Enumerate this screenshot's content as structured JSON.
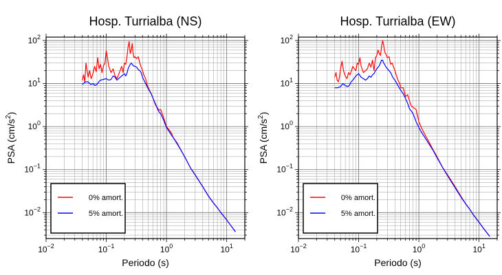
{
  "chart_data": [
    {
      "type": "line",
      "title": "Hosp. Turrialba (NS)",
      "xlabel": "Periodo (s)",
      "ylabel_main": "PSA (cm/s",
      "ylabel_sup": "2",
      "ylabel_close": ")",
      "xscale": "log",
      "yscale": "log",
      "xlim": [
        0.01,
        20
      ],
      "ylim": [
        0.0025,
        120
      ],
      "xticks": [
        {
          "base": "10",
          "exp": "−2",
          "value": 0.01
        },
        {
          "base": "10",
          "exp": "−1",
          "value": 0.1
        },
        {
          "base": "10",
          "exp": "0",
          "value": 1
        },
        {
          "base": "10",
          "exp": "1",
          "value": 10
        }
      ],
      "yticks": [
        {
          "base": "10",
          "exp": "−2",
          "value": 0.01
        },
        {
          "base": "10",
          "exp": "−1",
          "value": 0.1
        },
        {
          "base": "10",
          "exp": "0",
          "value": 1
        },
        {
          "base": "10",
          "exp": "1",
          "value": 10
        },
        {
          "base": "10",
          "exp": "2",
          "value": 100
        }
      ],
      "grid": true,
      "legend_position": "bottom-left",
      "series": [
        {
          "name": "0% amort.",
          "color": "#ff0000",
          "x": [
            0.04,
            0.042,
            0.044,
            0.046,
            0.048,
            0.05,
            0.053,
            0.056,
            0.06,
            0.064,
            0.068,
            0.072,
            0.076,
            0.08,
            0.085,
            0.09,
            0.095,
            0.1,
            0.105,
            0.11,
            0.12,
            0.13,
            0.14,
            0.15,
            0.16,
            0.17,
            0.18,
            0.19,
            0.2,
            0.21,
            0.22,
            0.23,
            0.24,
            0.25,
            0.26,
            0.27,
            0.28,
            0.29,
            0.3,
            0.32,
            0.34,
            0.36,
            0.38,
            0.4,
            0.42,
            0.45,
            0.48,
            0.5,
            0.55,
            0.6,
            0.65,
            0.7,
            0.75,
            0.8,
            0.9,
            1.0,
            1.1,
            1.2,
            1.3,
            1.5,
            1.7,
            2.0,
            2.5,
            3,
            4,
            5,
            6,
            7,
            8,
            10,
            12,
            14
          ],
          "y": [
            12,
            16,
            11,
            30,
            20,
            14,
            20,
            13,
            17,
            25,
            19,
            40,
            22,
            28,
            18,
            26,
            30,
            58,
            38,
            25,
            18,
            22,
            15,
            13,
            16,
            20,
            25,
            18,
            30,
            28,
            40,
            70,
            95,
            50,
            60,
            85,
            48,
            40,
            42,
            38,
            42,
            30,
            24,
            20,
            16,
            13,
            9,
            8,
            6,
            4.5,
            3.3,
            2.8,
            2.4,
            2.5,
            1.6,
            1.0,
            0.85,
            0.72,
            0.55,
            0.42,
            0.3,
            0.2,
            0.11,
            0.075,
            0.04,
            0.024,
            0.017,
            0.013,
            0.01,
            0.0068,
            0.0048,
            0.0036
          ]
        },
        {
          "name": "5% amort.",
          "color": "#0000ff",
          "x": [
            0.04,
            0.045,
            0.05,
            0.055,
            0.06,
            0.065,
            0.07,
            0.075,
            0.08,
            0.09,
            0.1,
            0.11,
            0.12,
            0.13,
            0.14,
            0.15,
            0.16,
            0.17,
            0.18,
            0.19,
            0.2,
            0.21,
            0.22,
            0.23,
            0.24,
            0.25,
            0.26,
            0.27,
            0.28,
            0.3,
            0.32,
            0.34,
            0.36,
            0.38,
            0.4,
            0.45,
            0.5,
            0.55,
            0.6,
            0.65,
            0.7,
            0.75,
            0.8,
            0.9,
            1.0,
            1.1,
            1.2,
            1.3,
            1.5,
            1.7,
            2.0,
            2.5,
            3,
            4,
            5,
            6,
            7,
            8,
            10,
            12,
            14
          ],
          "y": [
            9.5,
            11,
            11,
            9.5,
            10,
            9,
            9.5,
            11,
            12,
            12.5,
            13,
            12,
            12.5,
            15,
            14,
            12,
            13,
            14,
            15,
            16,
            17,
            15,
            17,
            22,
            25,
            28,
            30,
            28,
            26,
            25,
            24,
            21,
            20,
            18,
            14,
            10,
            7.5,
            6,
            4.5,
            3.5,
            2.7,
            2.2,
            2.0,
            1.4,
            0.95,
            0.78,
            0.65,
            0.55,
            0.4,
            0.3,
            0.2,
            0.11,
            0.075,
            0.04,
            0.024,
            0.017,
            0.013,
            0.01,
            0.0068,
            0.0048,
            0.0036
          ]
        }
      ]
    },
    {
      "type": "line",
      "title": "Hosp. Turrialba (EW)",
      "xlabel": "Periodo (s)",
      "ylabel_main": "PSA (cm/s",
      "ylabel_sup": "2",
      "ylabel_close": ")",
      "xscale": "log",
      "yscale": "log",
      "xlim": [
        0.01,
        20
      ],
      "ylim": [
        0.0025,
        120
      ],
      "xticks": [
        {
          "base": "10",
          "exp": "−2",
          "value": 0.01
        },
        {
          "base": "10",
          "exp": "−1",
          "value": 0.1
        },
        {
          "base": "10",
          "exp": "0",
          "value": 1
        },
        {
          "base": "10",
          "exp": "1",
          "value": 10
        }
      ],
      "yticks": [
        {
          "base": "10",
          "exp": "−2",
          "value": 0.01
        },
        {
          "base": "10",
          "exp": "−1",
          "value": 0.1
        },
        {
          "base": "10",
          "exp": "0",
          "value": 1
        },
        {
          "base": "10",
          "exp": "1",
          "value": 10
        },
        {
          "base": "10",
          "exp": "2",
          "value": 100
        }
      ],
      "grid": true,
      "legend_position": "bottom-left",
      "series": [
        {
          "name": "0% amort.",
          "color": "#ff0000",
          "x": [
            0.04,
            0.042,
            0.044,
            0.046,
            0.048,
            0.05,
            0.053,
            0.056,
            0.06,
            0.064,
            0.068,
            0.072,
            0.076,
            0.08,
            0.085,
            0.09,
            0.095,
            0.1,
            0.105,
            0.11,
            0.12,
            0.13,
            0.14,
            0.15,
            0.16,
            0.17,
            0.18,
            0.19,
            0.2,
            0.21,
            0.22,
            0.23,
            0.24,
            0.25,
            0.26,
            0.27,
            0.28,
            0.29,
            0.3,
            0.32,
            0.34,
            0.36,
            0.38,
            0.4,
            0.42,
            0.45,
            0.48,
            0.5,
            0.55,
            0.6,
            0.65,
            0.7,
            0.75,
            0.8,
            0.9,
            1.0,
            1.1,
            1.2,
            1.3,
            1.5,
            1.7,
            2.0,
            2.5,
            3,
            4,
            5,
            6,
            7,
            8,
            10,
            12,
            14,
            15
          ],
          "y": [
            14,
            18,
            12,
            11,
            14,
            22,
            33,
            20,
            15,
            13,
            18,
            16,
            20,
            25,
            22,
            20,
            30,
            28,
            40,
            25,
            18,
            20,
            22,
            30,
            24,
            35,
            20,
            40,
            45,
            60,
            50,
            45,
            70,
            100,
            80,
            55,
            50,
            45,
            40,
            42,
            28,
            30,
            24,
            20,
            16,
            12,
            10,
            8,
            8,
            5,
            5.5,
            4,
            3,
            2.8,
            2.5,
            1.3,
            0.95,
            0.75,
            0.6,
            0.42,
            0.3,
            0.2,
            0.11,
            0.075,
            0.04,
            0.024,
            0.016,
            0.012,
            0.009,
            0.006,
            0.0042,
            0.0032,
            0.0028
          ]
        },
        {
          "name": "5% amort.",
          "color": "#0000ff",
          "x": [
            0.04,
            0.045,
            0.05,
            0.055,
            0.06,
            0.065,
            0.07,
            0.075,
            0.08,
            0.09,
            0.1,
            0.11,
            0.12,
            0.13,
            0.14,
            0.15,
            0.16,
            0.17,
            0.18,
            0.19,
            0.2,
            0.21,
            0.22,
            0.23,
            0.24,
            0.25,
            0.26,
            0.27,
            0.28,
            0.3,
            0.32,
            0.34,
            0.36,
            0.38,
            0.4,
            0.45,
            0.5,
            0.55,
            0.6,
            0.65,
            0.7,
            0.75,
            0.8,
            0.9,
            1.0,
            1.1,
            1.2,
            1.3,
            1.5,
            1.7,
            2.0,
            2.5,
            3,
            4,
            5,
            6,
            7,
            8,
            10,
            12,
            14,
            15
          ],
          "y": [
            8,
            8,
            8.5,
            10,
            9,
            8.5,
            9,
            11,
            12,
            15,
            17,
            14,
            13,
            12,
            13,
            15,
            14,
            16,
            17,
            20,
            22,
            24,
            26,
            30,
            35,
            35,
            30,
            28,
            25,
            22,
            20,
            18,
            15,
            13,
            12,
            9,
            7,
            5.8,
            4.5,
            3.5,
            2.6,
            2.3,
            2.0,
            1.3,
            0.95,
            0.75,
            0.62,
            0.52,
            0.38,
            0.29,
            0.19,
            0.11,
            0.072,
            0.038,
            0.023,
            0.016,
            0.012,
            0.009,
            0.006,
            0.0042,
            0.0032,
            0.0028
          ]
        }
      ]
    }
  ]
}
